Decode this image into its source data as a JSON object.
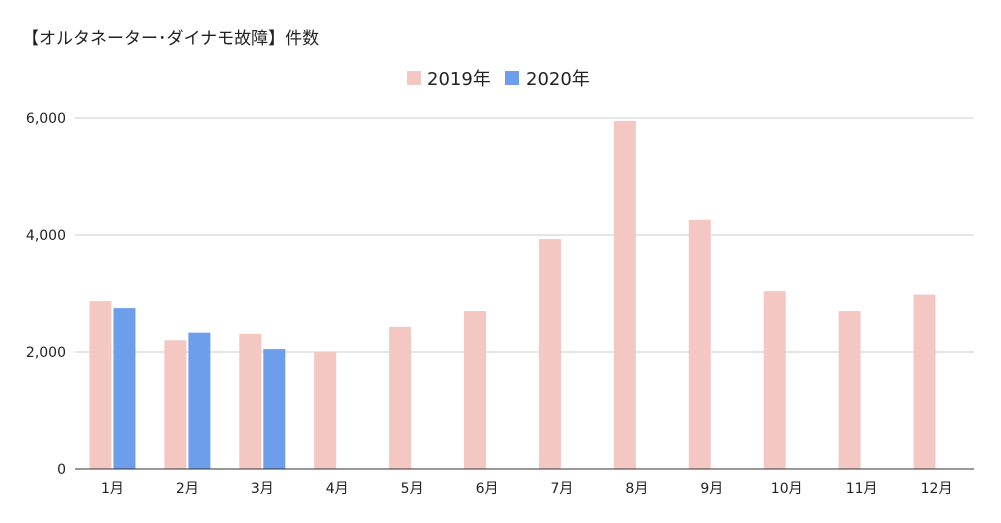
{
  "chart_data": {
    "type": "bar",
    "title": "【オルタネーター･ダイナモ故障】件数",
    "categories": [
      "1月",
      "2月",
      "3月",
      "4月",
      "5月",
      "6月",
      "7月",
      "8月",
      "9月",
      "10月",
      "11月",
      "12月"
    ],
    "series": [
      {
        "name": "2019年",
        "color": "#f4c7c3",
        "values": [
          2870,
          2200,
          2310,
          2000,
          2430,
          2700,
          3930,
          5950,
          4260,
          3040,
          2700,
          2980
        ]
      },
      {
        "name": "2020年",
        "color": "#6d9eeb",
        "values": [
          2750,
          2330,
          2050,
          null,
          null,
          null,
          null,
          null,
          null,
          null,
          null,
          null
        ]
      }
    ],
    "yticks": [
      "0",
      "2,000",
      "4,000",
      "6,000"
    ],
    "ylim": [
      0,
      6000
    ],
    "grid": true,
    "legend_position": "top-center"
  }
}
